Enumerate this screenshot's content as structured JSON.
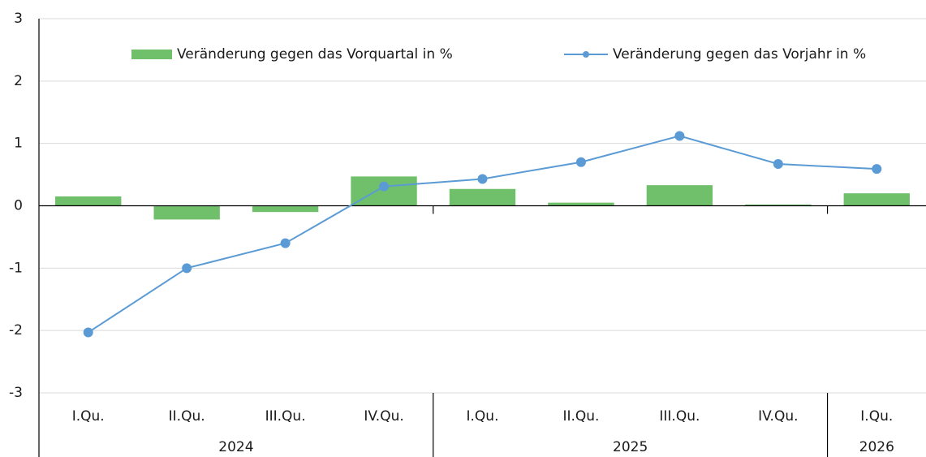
{
  "chart_data": {
    "type": "combo",
    "categories": [
      "I.Qu.",
      "II.Qu.",
      "III.Qu.",
      "IV.Qu.",
      "I.Qu.",
      "II.Qu.",
      "III.Qu.",
      "IV.Qu.",
      "I.Qu."
    ],
    "groups": [
      {
        "label": "2024",
        "count": 4
      },
      {
        "label": "2025",
        "count": 4
      },
      {
        "label": "2026",
        "count": 1
      }
    ],
    "series": [
      {
        "name": "Veränderung gegen das Vorquartal in %",
        "type": "bar",
        "color": "#70bf6b",
        "values": [
          0.15,
          -0.22,
          -0.1,
          0.47,
          0.27,
          0.05,
          0.33,
          0.02,
          0.2
        ]
      },
      {
        "name": "Veränderung gegen das Vorjahr in %",
        "type": "line",
        "color": "#5b9bd5",
        "values": [
          -2.03,
          -1.0,
          -0.6,
          0.31,
          0.43,
          0.7,
          1.12,
          0.67,
          0.59
        ]
      }
    ],
    "ylim": [
      -3,
      3
    ],
    "yticks": [
      -3,
      -2,
      -1,
      0,
      1,
      2,
      3
    ],
    "grid": true,
    "legend": "top"
  }
}
